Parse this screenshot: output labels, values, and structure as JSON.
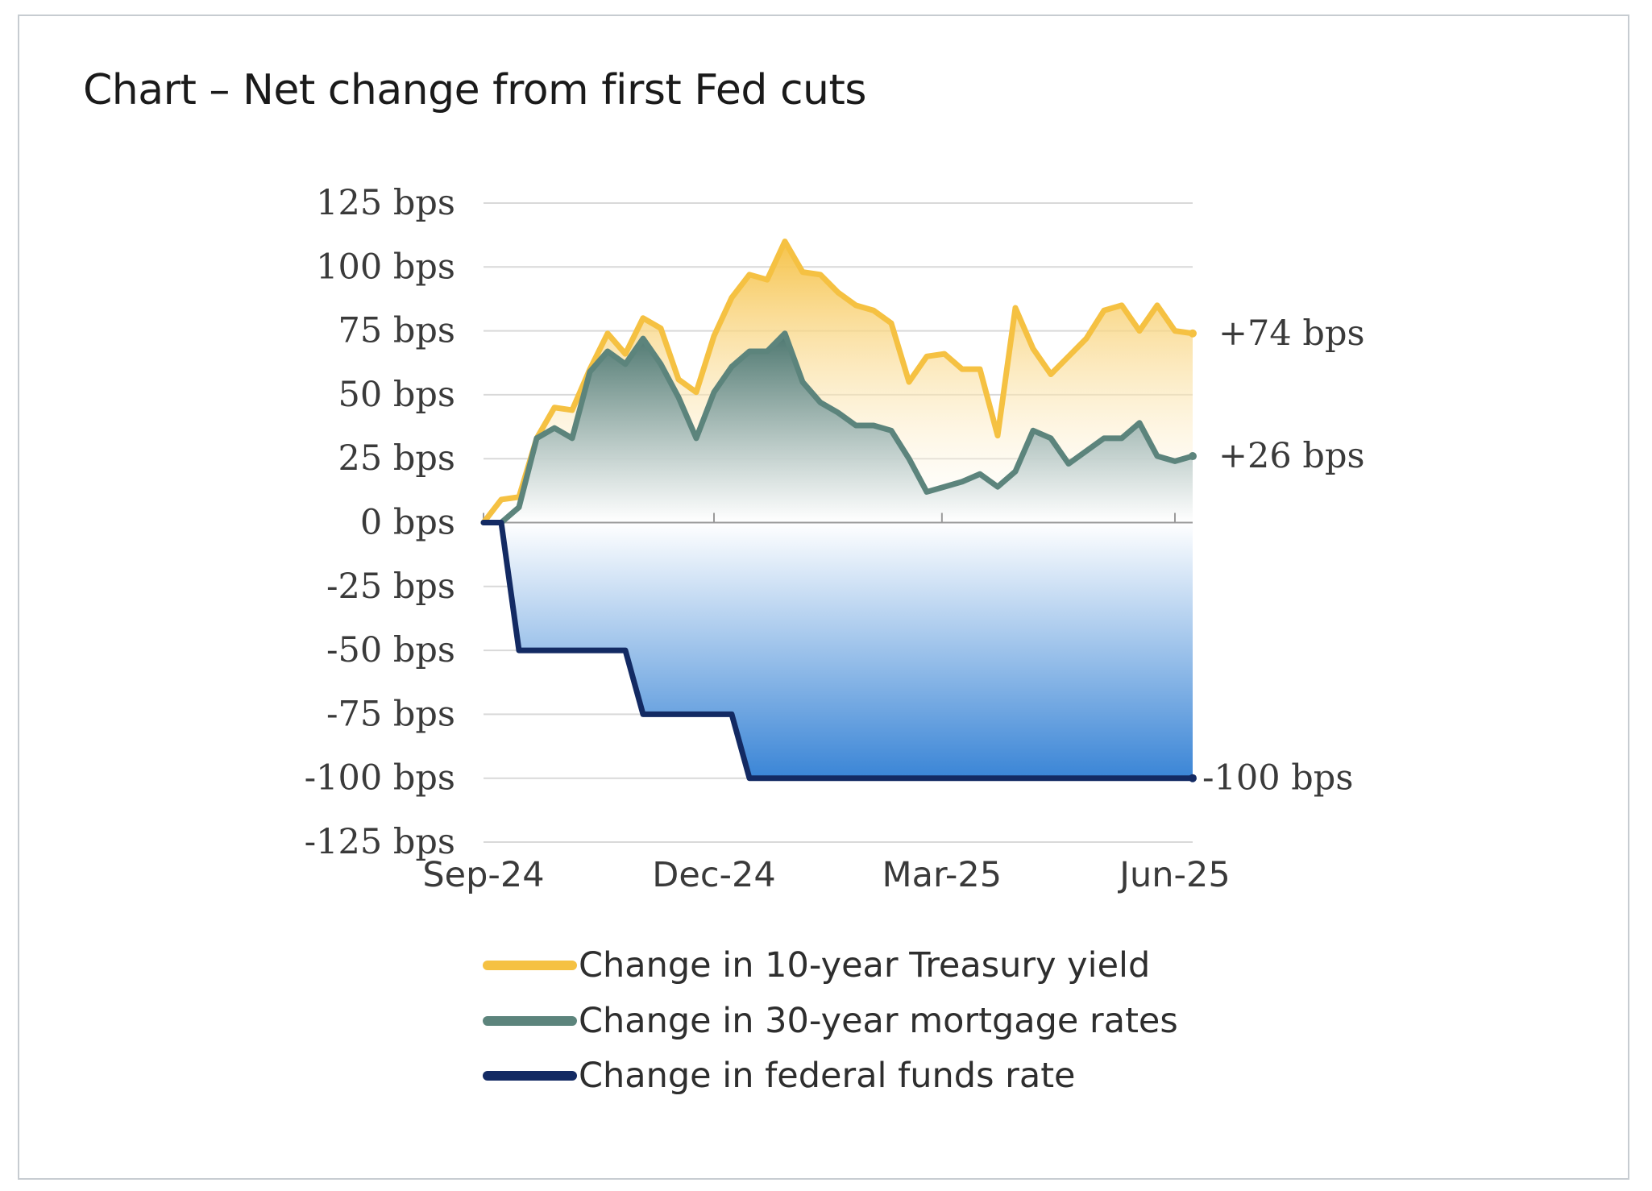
{
  "title": "Chart – Net change from first Fed cuts",
  "chart_data": {
    "type": "area",
    "title": "Chart – Net change from first Fed cuts",
    "ylim": [
      -125,
      125
    ],
    "y_ticks": [
      "125 bps",
      "100 bps",
      "75 bps",
      "50 bps",
      "25 bps",
      "0 bps",
      "-25 bps",
      "-50 bps",
      "-75 bps",
      "-100 bps",
      "-125 bps"
    ],
    "x_ticks": [
      {
        "label": "Sep-24",
        "x": 0
      },
      {
        "label": "Dec-24",
        "x": 91
      },
      {
        "label": "Mar-25",
        "x": 181
      },
      {
        "label": "Jun-25",
        "x": 273
      }
    ],
    "xlim": [
      0,
      280
    ],
    "grid": true,
    "legend_position": "bottom",
    "series": [
      {
        "name": "Change in 10-year Treasury yield",
        "color": "#f5c142",
        "end_label": "+74 bps",
        "points": [
          [
            0,
            0
          ],
          [
            7,
            9
          ],
          [
            14,
            10
          ],
          [
            21,
            33
          ],
          [
            28,
            45
          ],
          [
            35,
            44
          ],
          [
            42,
            60
          ],
          [
            49,
            74
          ],
          [
            56,
            66
          ],
          [
            63,
            80
          ],
          [
            70,
            76
          ],
          [
            77,
            56
          ],
          [
            84,
            51
          ],
          [
            91,
            73
          ],
          [
            98,
            88
          ],
          [
            105,
            97
          ],
          [
            112,
            95
          ],
          [
            119,
            110
          ],
          [
            126,
            98
          ],
          [
            133,
            97
          ],
          [
            140,
            90
          ],
          [
            147,
            85
          ],
          [
            154,
            83
          ],
          [
            161,
            78
          ],
          [
            168,
            55
          ],
          [
            175,
            65
          ],
          [
            182,
            66
          ],
          [
            189,
            60
          ],
          [
            196,
            60
          ],
          [
            203,
            34
          ],
          [
            210,
            84
          ],
          [
            217,
            68
          ],
          [
            224,
            58
          ],
          [
            231,
            65
          ],
          [
            238,
            72
          ],
          [
            245,
            83
          ],
          [
            252,
            85
          ],
          [
            259,
            75
          ],
          [
            266,
            85
          ],
          [
            273,
            75
          ],
          [
            280,
            74
          ]
        ]
      },
      {
        "name": "Change in 30-year mortgage rates",
        "color": "#5c847c",
        "end_label": "+26 bps",
        "points": [
          [
            0,
            0
          ],
          [
            7,
            0
          ],
          [
            14,
            6
          ],
          [
            21,
            33
          ],
          [
            28,
            37
          ],
          [
            35,
            33
          ],
          [
            42,
            59
          ],
          [
            49,
            67
          ],
          [
            56,
            62
          ],
          [
            63,
            72
          ],
          [
            70,
            62
          ],
          [
            77,
            49
          ],
          [
            84,
            33
          ],
          [
            91,
            51
          ],
          [
            98,
            61
          ],
          [
            105,
            67
          ],
          [
            112,
            67
          ],
          [
            119,
            74
          ],
          [
            126,
            55
          ],
          [
            133,
            47
          ],
          [
            140,
            43
          ],
          [
            147,
            38
          ],
          [
            154,
            38
          ],
          [
            161,
            36
          ],
          [
            168,
            25
          ],
          [
            175,
            12
          ],
          [
            182,
            14
          ],
          [
            189,
            16
          ],
          [
            196,
            19
          ],
          [
            203,
            14
          ],
          [
            210,
            20
          ],
          [
            217,
            36
          ],
          [
            224,
            33
          ],
          [
            231,
            23
          ],
          [
            238,
            28
          ],
          [
            245,
            33
          ],
          [
            252,
            33
          ],
          [
            259,
            39
          ],
          [
            266,
            26
          ],
          [
            273,
            24
          ],
          [
            280,
            26
          ]
        ]
      },
      {
        "name": "Change in federal funds rate",
        "color": "#132a63",
        "end_label": "-100 bps",
        "points": [
          [
            0,
            0
          ],
          [
            7,
            0
          ],
          [
            14,
            -50
          ],
          [
            56,
            -50
          ],
          [
            63,
            -75
          ],
          [
            98,
            -75
          ],
          [
            105,
            -100
          ],
          [
            280,
            -100
          ]
        ]
      }
    ]
  }
}
